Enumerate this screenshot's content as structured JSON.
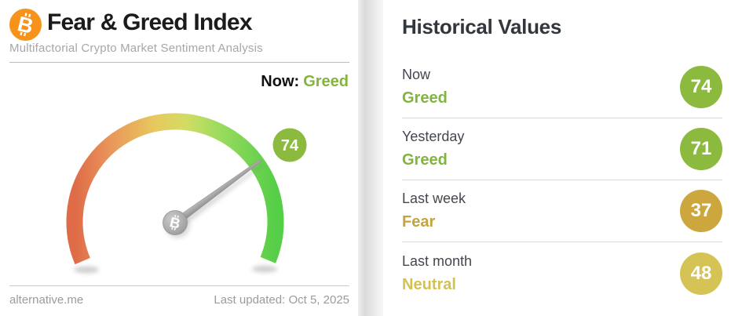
{
  "chart_data": {
    "type": "gauge",
    "title": "Fear & Greed Index",
    "value": 74,
    "classification": "Greed",
    "range": [
      0,
      100
    ],
    "scale": "red (fear, left) to green (greed, right) gradient arc, ~225 degree sweep",
    "historical": [
      {
        "label": "Now",
        "value": 74,
        "classification": "Greed"
      },
      {
        "label": "Yesterday",
        "value": 71,
        "classification": "Greed"
      },
      {
        "label": "Last week",
        "value": 37,
        "classification": "Fear"
      },
      {
        "label": "Last month",
        "value": 48,
        "classification": "Neutral"
      }
    ]
  },
  "left_panel": {
    "logo_icon": "bitcoin-icon",
    "logo_color": "#f7931a",
    "title": "Fear & Greed Index",
    "subtitle": "Multifactorial Crypto Market Sentiment Analysis",
    "now_label": "Now:",
    "now_value": "Greed",
    "now_value_color": "#83b53c",
    "footer_site": "alternative.me",
    "footer_updated": "Last updated: Oct 5, 2025"
  },
  "gauge": {
    "value": 74,
    "max": 100,
    "badge_color": "#8cba3f",
    "needle_color": "#a6a6a6",
    "hub_icon": "bitcoin-icon",
    "arc_gradient": [
      "#df6b48",
      "#e9965b",
      "#e7c95e",
      "#d3dc64",
      "#9cdb5e",
      "#55ce48"
    ]
  },
  "right_panel": {
    "title": "Historical Values",
    "rows": [
      {
        "label": "Now",
        "classification": "Greed",
        "value": 74,
        "badge_color": "#8cba3f",
        "text_color": "#82b440"
      },
      {
        "label": "Yesterday",
        "classification": "Greed",
        "value": 71,
        "badge_color": "#8cba3f",
        "text_color": "#82b440"
      },
      {
        "label": "Last week",
        "classification": "Fear",
        "value": 37,
        "badge_color": "#cba73e",
        "text_color": "#c5a33d"
      },
      {
        "label": "Last month",
        "classification": "Neutral",
        "value": 48,
        "badge_color": "#d5c455",
        "text_color": "#d4c14e"
      }
    ]
  }
}
